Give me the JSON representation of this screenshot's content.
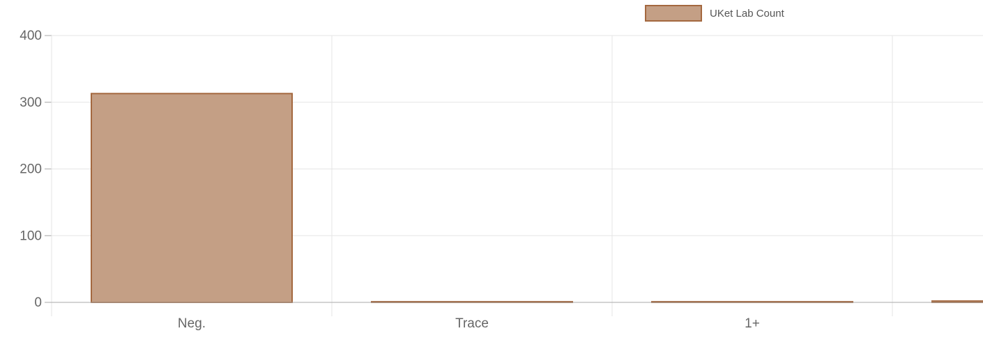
{
  "chart_data": {
    "type": "bar",
    "categories": [
      "Neg.",
      "Trace",
      "1+",
      ""
    ],
    "series": [
      {
        "name": "UKet Lab Count",
        "values": [
          313,
          1,
          1,
          2
        ]
      }
    ],
    "ylim": [
      0,
      400
    ],
    "yticks": [
      0,
      100,
      200,
      300,
      400
    ],
    "grid": true,
    "legend_position": "top-right",
    "colors": {
      "bar_fill": "#c49f85",
      "bar_stroke": "#a4683f",
      "grid": "#e5e5e5",
      "axis": "#aaaaaa",
      "tick_text": "#666666"
    }
  }
}
